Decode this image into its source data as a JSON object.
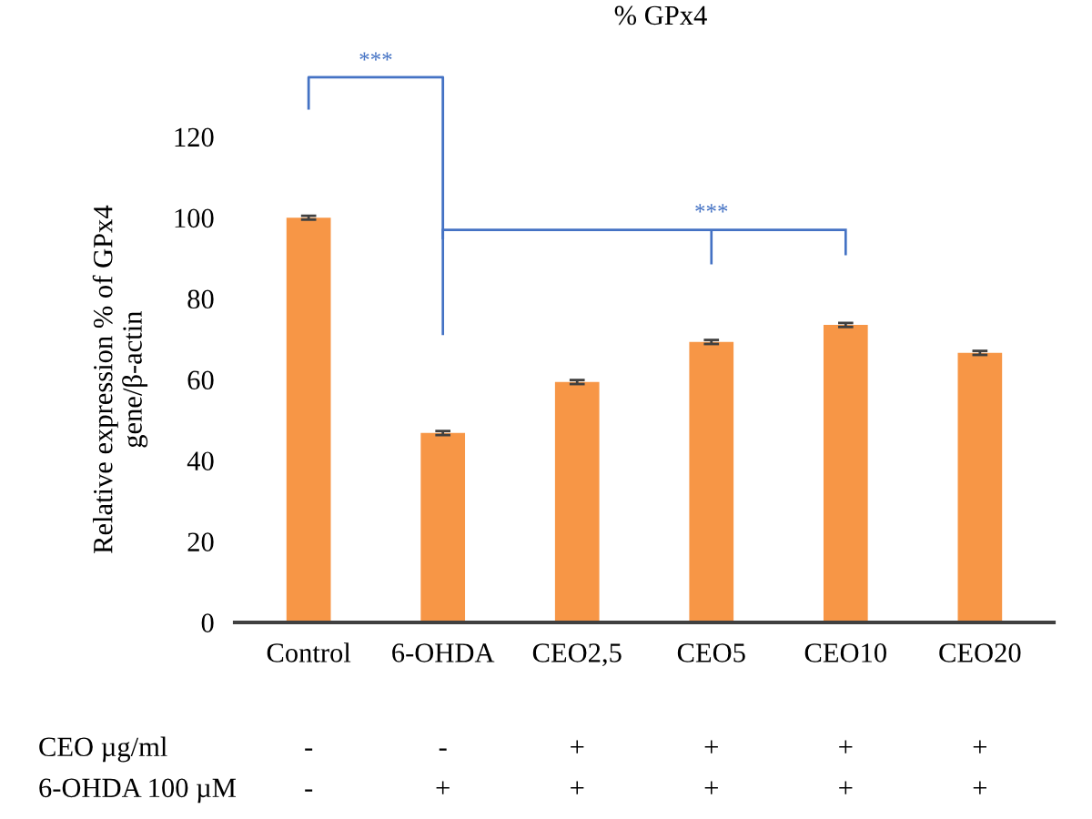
{
  "chart_data": {
    "type": "bar",
    "title": "% GPx4",
    "ylabel": "Relative expression % of GPx4\ngene/β-actin",
    "categories": [
      "Control",
      "6-OHDA",
      "CEO2,5",
      "CEO5",
      "CEO10",
      "CEO20"
    ],
    "values": [
      100,
      46.8,
      59.4,
      69.3,
      73.5,
      66.6
    ],
    "errors": [
      0.5,
      0.5,
      0.5,
      0.5,
      0.5,
      0.5
    ],
    "color": "#f79646",
    "ylim": [
      0,
      120
    ],
    "yticks": [
      0,
      20,
      40,
      60,
      80,
      100,
      120
    ],
    "grid": false,
    "legend": false,
    "annotations": [
      "***",
      "***",
      "CEO µg/ml",
      "6-OHDA 100 µM",
      "-",
      "-",
      "+",
      "+",
      "+",
      "+",
      "-",
      "+",
      "+",
      "+",
      "+",
      "+"
    ]
  }
}
